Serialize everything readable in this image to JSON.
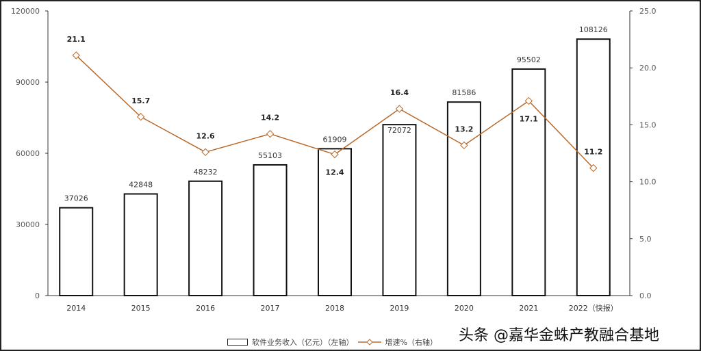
{
  "chart_data": {
    "type": "bar+line",
    "categories": [
      "2014",
      "2015",
      "2016",
      "2017",
      "2018",
      "2019",
      "2020",
      "2021",
      "2022（快报）"
    ],
    "series": [
      {
        "name": "软件业务收入（亿元）（左轴）",
        "type": "bar",
        "axis": "left",
        "values": [
          37026,
          42848,
          48232,
          55103,
          61909,
          72072,
          81586,
          95502,
          108126
        ]
      },
      {
        "name": "增速%（右轴）",
        "type": "line",
        "axis": "right",
        "values": [
          21.1,
          15.7,
          12.6,
          14.2,
          12.4,
          16.4,
          13.2,
          17.1,
          11.2
        ],
        "color": "#b8692a"
      }
    ],
    "left_axis": {
      "range": [
        0,
        120000
      ],
      "ticks": [
        "0",
        "30000",
        "60000",
        "90000",
        "120000"
      ]
    },
    "right_axis": {
      "range": [
        0,
        25
      ],
      "ticks": [
        "0.0",
        "5.0",
        "10.0",
        "15.0",
        "20.0",
        "25.0"
      ]
    },
    "grid": false,
    "legend": "bottom"
  },
  "watermark": "头条 @嘉华金蛛产教融合基地"
}
